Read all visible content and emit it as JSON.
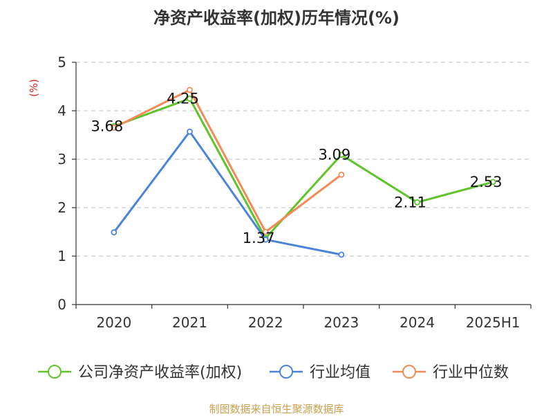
{
  "chart_data": {
    "type": "line",
    "title": "净资产收益率(加权)历年情况(%)",
    "ylabel": "(%)",
    "xlabel": "",
    "categories": [
      "2020",
      "2021",
      "2022",
      "2023",
      "2024",
      "2025H1"
    ],
    "ylim": [
      0,
      5
    ],
    "yticks": [
      0,
      1,
      2,
      3,
      4,
      5
    ],
    "grid": "horizontal dashed",
    "legend_position": "bottom",
    "series": [
      {
        "name": "公司净资产收益率(加权)",
        "color": "#5ec42a",
        "values": [
          3.68,
          4.25,
          1.37,
          3.09,
          2.11,
          2.53
        ],
        "show_labels": true
      },
      {
        "name": "行业均值",
        "color": "#4a84d8",
        "values": [
          1.49,
          3.57,
          1.34,
          1.03,
          null,
          null
        ],
        "show_labels": false
      },
      {
        "name": "行业中位数",
        "color": "#f28b55",
        "values": [
          3.65,
          4.43,
          1.5,
          2.68,
          null,
          null
        ],
        "show_labels": false
      }
    ]
  },
  "footer": {
    "source": "制图数据来自恒生聚源数据库"
  }
}
